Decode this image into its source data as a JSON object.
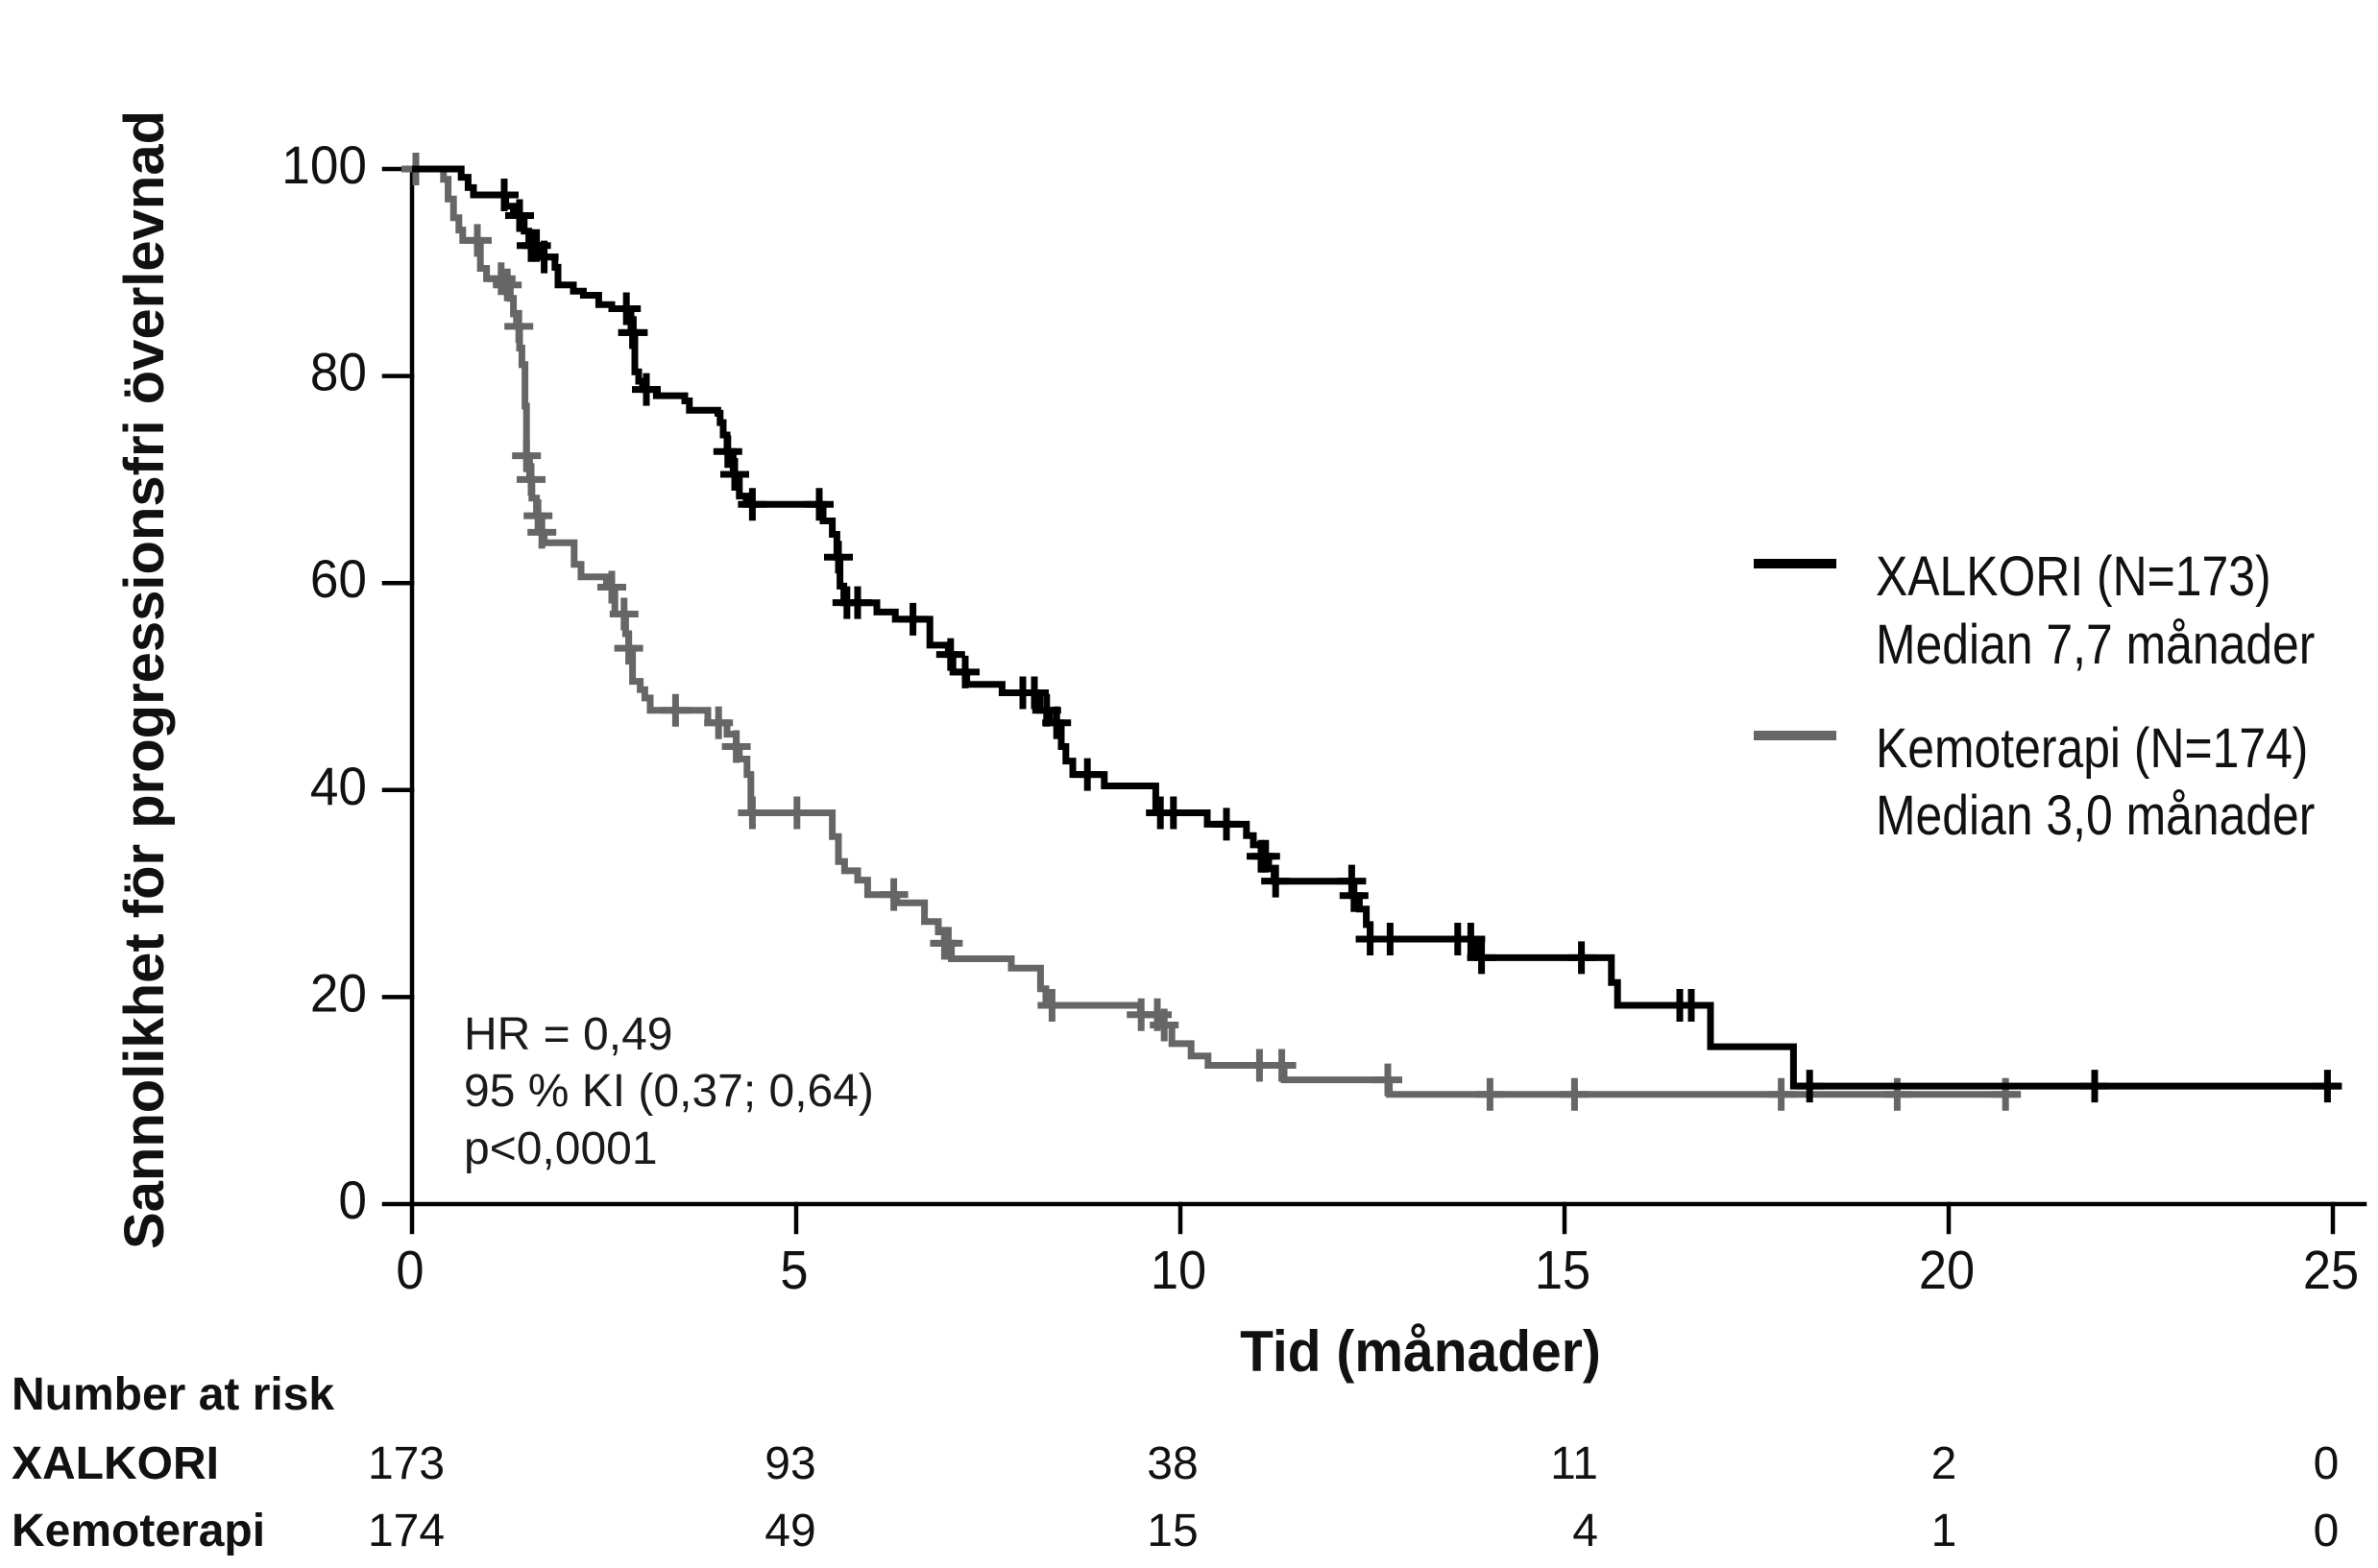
{
  "chart_data": {
    "type": "line",
    "step": "post",
    "title": "",
    "xlabel": "Tid (månader)",
    "ylabel": "Sannolikhet för progressionsfri överlevnad",
    "xlim": [
      0,
      25
    ],
    "ylim": [
      0,
      100
    ],
    "xticks": [
      0,
      5,
      10,
      15,
      20,
      25
    ],
    "yticks": [
      0,
      20,
      40,
      60,
      80,
      100
    ],
    "grid": false,
    "legend_position": "right",
    "series": [
      {
        "name": "XALKORI (N=173)",
        "median_label": "Median 7,7 månader",
        "color": "#000000",
        "x": [
          0,
          0.64,
          0.73,
          0.8,
          1.22,
          1.32,
          1.46,
          1.52,
          1.66,
          1.86,
          1.9,
          2.1,
          2.23,
          2.43,
          2.6,
          2.85,
          2.9,
          2.95,
          3.0,
          3.18,
          3.55,
          3.61,
          3.98,
          4.01,
          4.05,
          4.1,
          4.18,
          4.26,
          4.35,
          5.35,
          5.47,
          5.53,
          5.57,
          5.62,
          6.05,
          6.29,
          6.74,
          6.98,
          7.04,
          7.22,
          7.68,
          8.17,
          8.3,
          8.45,
          8.51,
          8.6,
          9.01,
          9.68,
          10.35,
          10.86,
          10.95,
          11.05,
          11.15,
          11.22,
          12.24,
          12.33,
          12.42,
          12.47,
          13.86,
          15.61,
          15.69,
          16.9,
          17.98
        ],
        "y": [
          100,
          99.2,
          98.2,
          97.5,
          96.4,
          95.5,
          94.0,
          92.6,
          91.5,
          90.5,
          88.8,
          88.2,
          87.8,
          86.9,
          86.5,
          84.2,
          80.4,
          79.5,
          78.7,
          78.1,
          77.6,
          76.7,
          76.4,
          75.5,
          74.3,
          72.7,
          70.5,
          68.4,
          67.6,
          66.0,
          64.7,
          62.5,
          59.7,
          58.1,
          57.2,
          56.5,
          54.0,
          53.1,
          51.4,
          50.2,
          49.4,
          47.7,
          46.5,
          44.2,
          42.8,
          41.5,
          40.4,
          37.8,
          36.7,
          35.6,
          34.7,
          33.6,
          32.4,
          31.2,
          29.8,
          28.5,
          27.0,
          25.6,
          23.8,
          21.4,
          19.2,
          15.2,
          11.4
        ],
        "last_x": 25.1,
        "censored_x": [
          1.2,
          1.4,
          1.55,
          1.62,
          1.72,
          2.79,
          2.87,
          2.88,
          3.05,
          4.11,
          4.2,
          4.43,
          5.3,
          5.55,
          5.66,
          5.8,
          6.52,
          7.01,
          7.2,
          7.95,
          8.1,
          8.26,
          8.39,
          8.79,
          9.74,
          9.91,
          10.6,
          11.05,
          11.11,
          11.24,
          12.23,
          12.26,
          12.47,
          12.73,
          13.61,
          13.78,
          13.92,
          15.22,
          16.5,
          16.65,
          18.19,
          21.9,
          24.93
        ]
      },
      {
        "name": "Kemoterapi (N=174)",
        "median_label": "Median 3,0 månader",
        "color": "#666666",
        "x": [
          0,
          0.41,
          0.47,
          0.54,
          0.61,
          0.66,
          0.89,
          0.97,
          1.22,
          1.28,
          1.32,
          1.36,
          1.4,
          1.43,
          1.47,
          1.49,
          1.53,
          1.56,
          1.62,
          1.68,
          1.72,
          2.11,
          2.2,
          2.53,
          2.64,
          2.78,
          2.82,
          2.87,
          2.97,
          3.03,
          3.1,
          3.85,
          4.1,
          4.22,
          4.26,
          4.36,
          4.41,
          5.47,
          5.55,
          5.63,
          5.8,
          5.93,
          6.31,
          6.67,
          6.85,
          6.93,
          7.02,
          7.8,
          8.18,
          8.25,
          9.48,
          9.75,
          9.89,
          10.14,
          10.36,
          11.35,
          12.72
        ],
        "y": [
          100,
          99.0,
          97.1,
          95.3,
          94.1,
          93.1,
          90.4,
          89.4,
          88.8,
          87.5,
          86.0,
          84.8,
          82.7,
          81.1,
          77.1,
          72.3,
          70.0,
          68.2,
          66.5,
          64.9,
          63.9,
          61.8,
          60.6,
          59.6,
          57.0,
          55.1,
          53.7,
          50.5,
          49.7,
          48.9,
          47.7,
          46.5,
          45.4,
          44.2,
          43.0,
          41.5,
          37.8,
          35.5,
          33.1,
          32.2,
          31.3,
          29.9,
          29.1,
          27.3,
          26.3,
          25.2,
          23.7,
          22.8,
          20.8,
          19.2,
          18.3,
          17.3,
          15.5,
          14.3,
          13.4,
          12.0,
          10.6
        ],
        "last_x": 20.94,
        "censored_x": [
          0.05,
          0.85,
          1.16,
          1.24,
          1.39,
          1.49,
          1.55,
          1.64,
          1.69,
          2.6,
          2.76,
          2.82,
          3.43,
          3.99,
          4.22,
          4.43,
          5.01,
          6.27,
          6.93,
          6.98,
          8.33,
          9.49,
          9.7,
          9.79,
          11.03,
          11.32,
          12.7,
          14.03,
          15.13,
          17.82,
          19.33,
          20.74
        ]
      }
    ],
    "annotations": [
      "HR = 0,49",
      "95 % KI (0,37; 0,64)",
      "p<0,0001"
    ],
    "risk_table": {
      "title": "Number at risk",
      "times": [
        0,
        5,
        10,
        15,
        20,
        25
      ],
      "rows": [
        {
          "label": "XALKORI",
          "values": [
            173,
            93,
            38,
            11,
            2,
            0
          ]
        },
        {
          "label": "Kemoterapi",
          "values": [
            174,
            49,
            15,
            4,
            1,
            0
          ]
        }
      ]
    }
  }
}
